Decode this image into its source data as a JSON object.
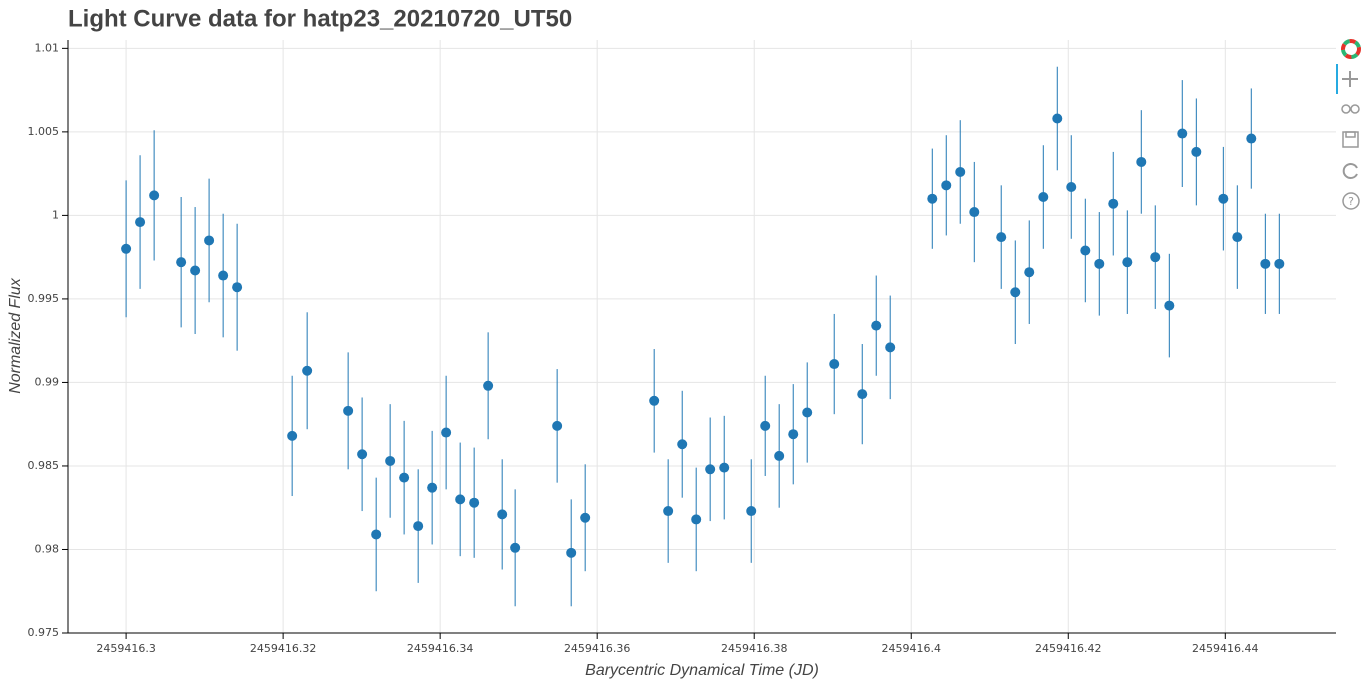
{
  "chart_data": {
    "type": "errorbar-scatter",
    "title": "Light Curve data for hatp23_20210720_UT50",
    "x_label": "Barycentric Dynamical Time (JD)",
    "y_label": "Normalized Flux",
    "color": "#1f77b4",
    "grid": true,
    "x": [
      2459416.3,
      2459416.30178,
      2459416.30357,
      2459416.30701,
      2459416.30879,
      2459416.31057,
      2459416.31236,
      2459416.31414,
      2459416.32115,
      2459416.32306,
      2459416.32828,
      2459416.33006,
      2459416.33185,
      2459416.33363,
      2459416.33541,
      2459416.3372,
      2459416.33898,
      2459416.34076,
      2459416.34255,
      2459416.34433,
      2459416.34611,
      2459416.3479,
      2459416.34955,
      2459416.3549,
      2459416.35669,
      2459416.35847,
      2459416.36726,
      2459416.36904,
      2459416.37083,
      2459416.37261,
      2459416.37439,
      2459416.37618,
      2459416.37962,
      2459416.3814,
      2459416.38318,
      2459416.38497,
      2459416.38675,
      2459416.39019,
      2459416.39376,
      2459416.39554,
      2459416.39732,
      2459416.40268,
      2459416.40446,
      2459416.40624,
      2459416.40803,
      2459416.41146,
      2459416.41325,
      2459416.41503,
      2459416.41682,
      2459416.4186,
      2459416.42038,
      2459416.42217,
      2459416.42395,
      2459416.42573,
      2459416.42752,
      2459416.4293,
      2459416.43108,
      2459416.43287,
      2459416.43452,
      2459416.43631,
      2459416.43975,
      2459416.44153,
      2459416.44331,
      2459416.4451,
      2459416.44688
    ],
    "values": [
      0.998,
      0.9996,
      1.0012,
      0.9972,
      0.9967,
      0.9985,
      0.9964,
      0.9957,
      0.9868,
      0.9907,
      0.9883,
      0.9857,
      0.9809,
      0.9853,
      0.9843,
      0.9814,
      0.9837,
      0.987,
      0.983,
      0.9828,
      0.9898,
      0.9821,
      0.9801,
      0.9874,
      0.9798,
      0.9819,
      0.9889,
      0.9823,
      0.9863,
      0.9818,
      0.9848,
      0.9849,
      0.9823,
      0.9874,
      0.9856,
      0.9869,
      0.9882,
      0.9911,
      0.9893,
      0.9934,
      0.9921,
      1.001,
      1.0018,
      1.0026,
      1.0002,
      0.9987,
      0.9954,
      0.9966,
      1.0011,
      1.0058,
      1.0017,
      0.9979,
      0.9971,
      1.0007,
      0.9972,
      1.0032,
      0.9975,
      0.9946,
      1.0049,
      1.0038,
      1.001,
      0.9987,
      1.0046,
      0.9971,
      0.9971
    ],
    "errors": [
      0.0041,
      0.004,
      0.0039,
      0.0039,
      0.0038,
      0.0037,
      0.0037,
      0.0038,
      0.0036,
      0.0035,
      0.0035,
      0.0034,
      0.0034,
      0.0034,
      0.0034,
      0.0034,
      0.0034,
      0.0034,
      0.0034,
      0.0033,
      0.0032,
      0.0033,
      0.0035,
      0.0034,
      0.0032,
      0.0032,
      0.0031,
      0.0031,
      0.0032,
      0.0031,
      0.0031,
      0.0031,
      0.0031,
      0.003,
      0.0031,
      0.003,
      0.003,
      0.003,
      0.003,
      0.003,
      0.0031,
      0.003,
      0.003,
      0.0031,
      0.003,
      0.0031,
      0.0031,
      0.0031,
      0.0031,
      0.0031,
      0.0031,
      0.0031,
      0.0031,
      0.0031,
      0.0031,
      0.0031,
      0.0031,
      0.0031,
      0.0032,
      0.0032,
      0.0031,
      0.0031,
      0.003,
      0.003,
      0.003
    ],
    "xlim": [
      2459416.2926,
      2459416.4541
    ],
    "ylim": [
      0.975,
      1.0105
    ],
    "xticks": [
      2459416.3,
      2459416.32,
      2459416.34,
      2459416.36,
      2459416.38,
      2459416.4,
      2459416.42,
      2459416.44
    ],
    "yticks": [
      0.975,
      0.98,
      0.985,
      0.99,
      0.995,
      1,
      1.005,
      1.01
    ]
  }
}
